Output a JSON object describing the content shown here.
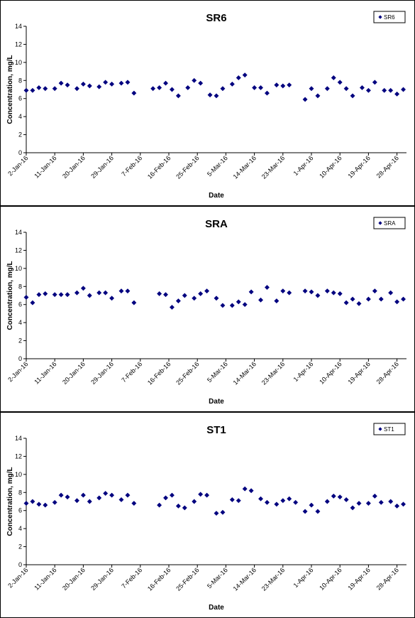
{
  "chart_data": [
    {
      "type": "scatter",
      "title": "SR6",
      "xlabel": "Date",
      "ylabel": "Concentration, mg/L",
      "ylim": [
        0,
        14
      ],
      "yticks": [
        0,
        2,
        4,
        6,
        8,
        10,
        12,
        14
      ],
      "xlim": [
        "2016-01-02",
        "2016-05-01"
      ],
      "xticks": [
        "2-Jan-16",
        "11-Jan-16",
        "20-Jan-16",
        "29-Jan-16",
        "7-Feb-16",
        "16-Feb-16",
        "25-Feb-16",
        "5-Mar-16",
        "14-Mar-16",
        "23-Mar-16",
        "1-Apr-16",
        "10-Apr-16",
        "19-Apr-16",
        "28-Apr-16"
      ],
      "grid": false,
      "legend": "top-right",
      "series": [
        {
          "name": "SR6",
          "color": "#00007f",
          "x": [
            "2016-01-02",
            "2016-01-04",
            "2016-01-06",
            "2016-01-08",
            "2016-01-11",
            "2016-01-13",
            "2016-01-15",
            "2016-01-18",
            "2016-01-20",
            "2016-01-22",
            "2016-01-25",
            "2016-01-27",
            "2016-01-29",
            "2016-02-01",
            "2016-02-03",
            "2016-02-05",
            "2016-02-11",
            "2016-02-13",
            "2016-02-15",
            "2016-02-17",
            "2016-02-19",
            "2016-02-22",
            "2016-02-24",
            "2016-02-26",
            "2016-02-29",
            "2016-03-02",
            "2016-03-04",
            "2016-03-07",
            "2016-03-09",
            "2016-03-11",
            "2016-03-14",
            "2016-03-16",
            "2016-03-18",
            "2016-03-21",
            "2016-03-23",
            "2016-03-25",
            "2016-03-30",
            "2016-04-01",
            "2016-04-03",
            "2016-04-06",
            "2016-04-08",
            "2016-04-10",
            "2016-04-12",
            "2016-04-14",
            "2016-04-17",
            "2016-04-19",
            "2016-04-21",
            "2016-04-24",
            "2016-04-26",
            "2016-04-28",
            "2016-04-30"
          ],
          "values": [
            6.9,
            6.9,
            7.2,
            7.1,
            7.1,
            7.7,
            7.5,
            7.1,
            7.6,
            7.4,
            7.3,
            7.8,
            7.6,
            7.7,
            7.8,
            6.6,
            7.1,
            7.2,
            7.7,
            7.0,
            6.3,
            7.2,
            8.0,
            7.7,
            6.4,
            6.3,
            7.1,
            7.6,
            8.3,
            8.6,
            7.2,
            7.2,
            6.6,
            7.5,
            7.4,
            7.5,
            5.9,
            7.1,
            6.3,
            7.1,
            8.3,
            7.8,
            7.1,
            6.3,
            7.2,
            6.9,
            7.8,
            6.9,
            6.9,
            6.5,
            7.0
          ]
        }
      ]
    },
    {
      "type": "scatter",
      "title": "SRA",
      "xlabel": "Date",
      "ylabel": "Concentration, mg/L",
      "ylim": [
        0,
        14
      ],
      "yticks": [
        0,
        2,
        4,
        6,
        8,
        10,
        12,
        14
      ],
      "xlim": [
        "2016-01-02",
        "2016-05-01"
      ],
      "xticks": [
        "2-Jan-16",
        "11-Jan-16",
        "20-Jan-16",
        "29-Jan-16",
        "7-Feb-16",
        "16-Feb-16",
        "25-Feb-16",
        "5-Mar-16",
        "14-Mar-16",
        "23-Mar-16",
        "1-Apr-16",
        "10-Apr-16",
        "19-Apr-16",
        "28-Apr-16"
      ],
      "grid": false,
      "legend": "top-right",
      "series": [
        {
          "name": "SRA",
          "color": "#00007f",
          "x": [
            "2016-01-02",
            "2016-01-04",
            "2016-01-06",
            "2016-01-08",
            "2016-01-11",
            "2016-01-13",
            "2016-01-15",
            "2016-01-18",
            "2016-01-20",
            "2016-01-22",
            "2016-01-25",
            "2016-01-27",
            "2016-01-29",
            "2016-02-01",
            "2016-02-03",
            "2016-02-05",
            "2016-02-13",
            "2016-02-15",
            "2016-02-17",
            "2016-02-19",
            "2016-02-21",
            "2016-02-24",
            "2016-02-26",
            "2016-02-28",
            "2016-03-02",
            "2016-03-04",
            "2016-03-07",
            "2016-03-09",
            "2016-03-11",
            "2016-03-13",
            "2016-03-16",
            "2016-03-18",
            "2016-03-21",
            "2016-03-23",
            "2016-03-25",
            "2016-03-30",
            "2016-04-01",
            "2016-04-03",
            "2016-04-06",
            "2016-04-08",
            "2016-04-10",
            "2016-04-12",
            "2016-04-14",
            "2016-04-16",
            "2016-04-19",
            "2016-04-21",
            "2016-04-23",
            "2016-04-26",
            "2016-04-28",
            "2016-04-30"
          ],
          "values": [
            6.8,
            6.2,
            7.1,
            7.2,
            7.1,
            7.1,
            7.1,
            7.3,
            7.8,
            7.0,
            7.3,
            7.3,
            6.7,
            7.5,
            7.5,
            6.2,
            7.2,
            7.1,
            5.7,
            6.4,
            7.0,
            6.7,
            7.2,
            7.5,
            6.7,
            5.9,
            5.9,
            6.3,
            6.0,
            7.4,
            6.5,
            7.9,
            6.4,
            7.5,
            7.3,
            7.5,
            7.4,
            7.0,
            7.5,
            7.3,
            7.2,
            6.2,
            6.6,
            6.1,
            6.6,
            7.5,
            6.6,
            7.3,
            6.3,
            6.6
          ]
        }
      ]
    },
    {
      "type": "scatter",
      "title": "ST1",
      "xlabel": "Date",
      "ylabel": "Concentration, mg/L",
      "ylim": [
        0,
        14
      ],
      "yticks": [
        0,
        2,
        4,
        6,
        8,
        10,
        12,
        14
      ],
      "xlim": [
        "2016-01-02",
        "2016-05-01"
      ],
      "xticks": [
        "2-Jan-16",
        "11-Jan-16",
        "20-Jan-16",
        "29-Jan-16",
        "7-Feb-16",
        "16-Feb-16",
        "25-Feb-16",
        "5-Mar-16",
        "14-Mar-16",
        "23-Mar-16",
        "1-Apr-16",
        "10-Apr-16",
        "19-Apr-16",
        "28-Apr-16"
      ],
      "grid": false,
      "legend": "top-right",
      "series": [
        {
          "name": "ST1",
          "color": "#00007f",
          "x": [
            "2016-01-02",
            "2016-01-04",
            "2016-01-06",
            "2016-01-08",
            "2016-01-11",
            "2016-01-13",
            "2016-01-15",
            "2016-01-18",
            "2016-01-20",
            "2016-01-22",
            "2016-01-25",
            "2016-01-27",
            "2016-01-29",
            "2016-02-01",
            "2016-02-03",
            "2016-02-05",
            "2016-02-13",
            "2016-02-15",
            "2016-02-17",
            "2016-02-19",
            "2016-02-21",
            "2016-02-24",
            "2016-02-26",
            "2016-02-28",
            "2016-03-02",
            "2016-03-04",
            "2016-03-07",
            "2016-03-09",
            "2016-03-11",
            "2016-03-13",
            "2016-03-16",
            "2016-03-18",
            "2016-03-21",
            "2016-03-23",
            "2016-03-25",
            "2016-03-27",
            "2016-03-30",
            "2016-04-01",
            "2016-04-03",
            "2016-04-06",
            "2016-04-08",
            "2016-04-10",
            "2016-04-12",
            "2016-04-14",
            "2016-04-16",
            "2016-04-19",
            "2016-04-21",
            "2016-04-23",
            "2016-04-26",
            "2016-04-28",
            "2016-04-30"
          ],
          "values": [
            6.8,
            7.0,
            6.7,
            6.6,
            6.9,
            7.7,
            7.5,
            7.1,
            7.7,
            7.0,
            7.4,
            7.9,
            7.7,
            7.2,
            7.7,
            6.8,
            6.6,
            7.4,
            7.7,
            6.5,
            6.3,
            7.0,
            7.8,
            7.7,
            5.7,
            5.8,
            7.2,
            7.1,
            8.4,
            8.2,
            7.3,
            6.9,
            6.7,
            7.1,
            7.3,
            6.9,
            5.9,
            6.6,
            5.9,
            7.0,
            7.6,
            7.5,
            7.2,
            6.3,
            6.8,
            6.8,
            7.6,
            6.9,
            7.0,
            6.5,
            6.7
          ]
        }
      ]
    }
  ]
}
